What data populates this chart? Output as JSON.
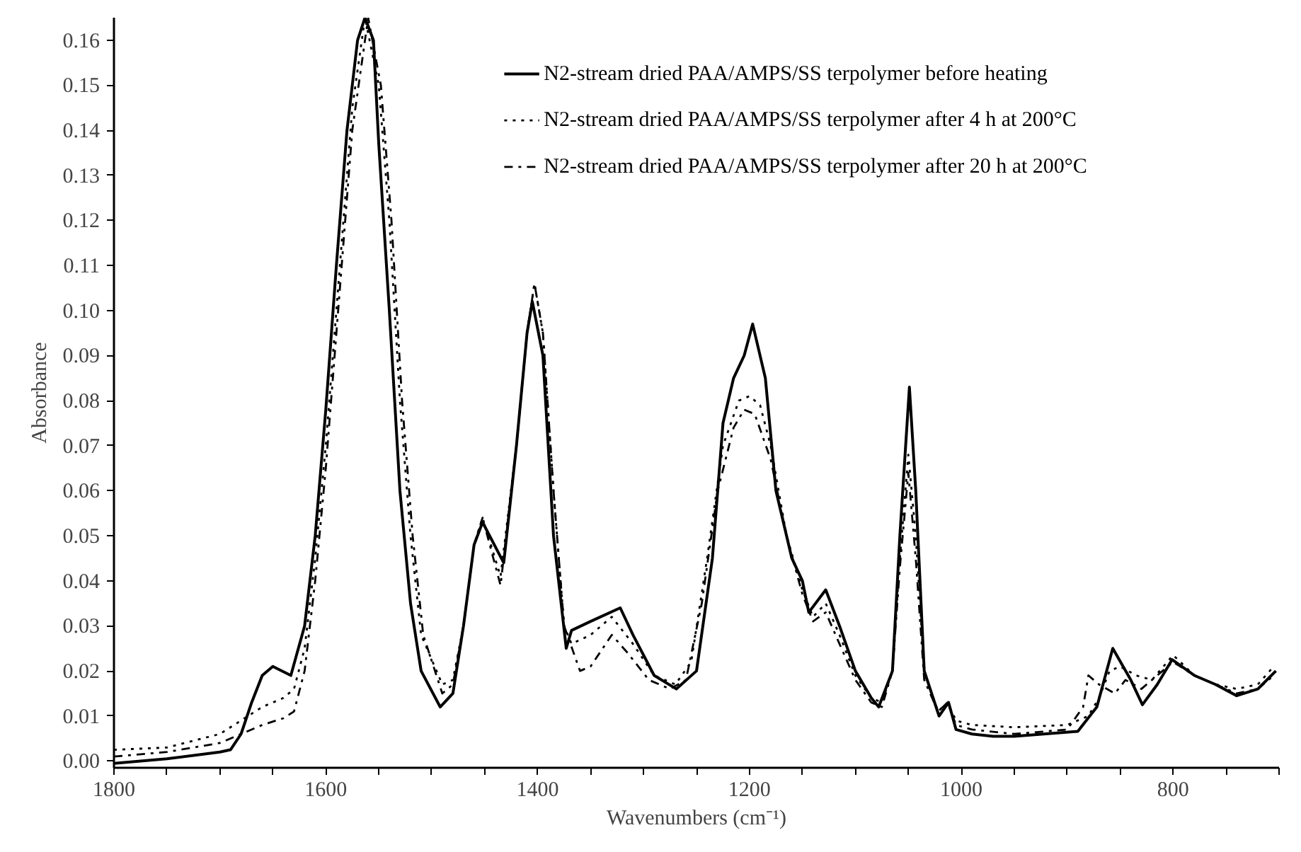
{
  "chart_data": {
    "type": "line",
    "xlabel": "Wavenumbers (cm⁻¹)",
    "ylabel": "Absorbance",
    "xlim": [
      1800,
      700
    ],
    "ylim": [
      -0.0015,
      0.165
    ],
    "xticks": [
      1800,
      {
        "value": 1750,
        "label": null
      },
      {
        "value": 1700,
        "label": null
      },
      {
        "value": 1650,
        "label": null
      },
      1600,
      {
        "value": 1550,
        "label": null
      },
      {
        "value": 1500,
        "label": null
      },
      {
        "value": 1450,
        "label": null
      },
      1400,
      {
        "value": 1350,
        "label": null
      },
      {
        "value": 1300,
        "label": null
      },
      {
        "value": 1250,
        "label": null
      },
      1200,
      {
        "value": 1150,
        "label": null
      },
      {
        "value": 1100,
        "label": null
      },
      {
        "value": 1050,
        "label": null
      },
      1000,
      {
        "value": 950,
        "label": null
      },
      {
        "value": 900,
        "label": null
      },
      {
        "value": 850,
        "label": null
      },
      800,
      {
        "value": 750,
        "label": null
      },
      {
        "value": 700,
        "label": null
      }
    ],
    "yticks": [
      {
        "value": 0,
        "label": "0.00"
      },
      {
        "value": 0.01,
        "label": "0.01"
      },
      {
        "value": 0.02,
        "label": "0.02"
      },
      {
        "value": 0.03,
        "label": "0.03"
      },
      {
        "value": 0.04,
        "label": "0.04"
      },
      {
        "value": 0.05,
        "label": "0.05"
      },
      {
        "value": 0.06,
        "label": "0.06"
      },
      {
        "value": 0.07,
        "label": "0.07"
      },
      {
        "value": 0.08,
        "label": "0.08"
      },
      {
        "value": 0.09,
        "label": "0.09"
      },
      {
        "value": 0.1,
        "label": "0.10"
      },
      {
        "value": 0.11,
        "label": "0.11"
      },
      {
        "value": 0.12,
        "label": "0.12"
      },
      {
        "value": 0.13,
        "label": "0.13"
      },
      {
        "value": 0.14,
        "label": "0.14"
      },
      {
        "value": 0.15,
        "label": "0.15"
      },
      {
        "value": 0.16,
        "label": "0.16"
      }
    ],
    "grid": false,
    "legend": "top right",
    "marker": "none",
    "series": [
      {
        "name": "N2-stream dried PAA/AMPS/SS terpolymer before heating",
        "color": "#000000",
        "line_style": "solid",
        "x": [
          1800,
          1750,
          1700,
          1690,
          1680,
          1670,
          1660,
          1650,
          1633,
          1620,
          1610,
          1600,
          1590,
          1580,
          1570,
          1563,
          1555,
          1550,
          1540,
          1530,
          1520,
          1510,
          1492,
          1480,
          1470,
          1460,
          1452,
          1432,
          1420,
          1410,
          1405,
          1395,
          1385,
          1373,
          1368,
          1350,
          1322,
          1310,
          1290,
          1269,
          1250,
          1235,
          1225,
          1215,
          1205,
          1197,
          1185,
          1175,
          1160,
          1150,
          1144,
          1128,
          1115,
          1100,
          1085,
          1078,
          1065,
          1058,
          1049,
          1043,
          1035,
          1021,
          1012,
          1005,
          990,
          970,
          950,
          890,
          872,
          857,
          840,
          829,
          815,
          801,
          780,
          760,
          740,
          720,
          703
        ],
        "values": [
          -0.0005,
          0.0005,
          0.002,
          0.0025,
          0.006,
          0.013,
          0.019,
          0.021,
          0.019,
          0.03,
          0.05,
          0.078,
          0.11,
          0.14,
          0.16,
          0.165,
          0.16,
          0.137,
          0.1,
          0.06,
          0.035,
          0.02,
          0.012,
          0.015,
          0.03,
          0.048,
          0.053,
          0.044,
          0.07,
          0.095,
          0.102,
          0.09,
          0.05,
          0.025,
          0.029,
          0.031,
          0.034,
          0.028,
          0.019,
          0.016,
          0.02,
          0.045,
          0.075,
          0.085,
          0.09,
          0.097,
          0.085,
          0.06,
          0.045,
          0.04,
          0.033,
          0.038,
          0.03,
          0.02,
          0.014,
          0.012,
          0.02,
          0.05,
          0.083,
          0.06,
          0.02,
          0.01,
          0.013,
          0.007,
          0.006,
          0.0055,
          0.0055,
          0.0066,
          0.012,
          0.025,
          0.018,
          0.0125,
          0.017,
          0.0225,
          0.019,
          0.017,
          0.0145,
          0.016,
          0.02
        ]
      },
      {
        "name": "N2-stream dried PAA/AMPS/SS terpolymer after 4 h at 200°C",
        "color": "#000000",
        "line_style": "dotted",
        "x": [
          1800,
          1750,
          1700,
          1680,
          1660,
          1640,
          1630,
          1620,
          1610,
          1600,
          1590,
          1575,
          1563,
          1550,
          1540,
          1530,
          1520,
          1510,
          1490,
          1480,
          1470,
          1460,
          1452,
          1435,
          1420,
          1410,
          1403,
          1395,
          1385,
          1375,
          1368,
          1350,
          1330,
          1310,
          1290,
          1270,
          1255,
          1240,
          1225,
          1210,
          1200,
          1190,
          1180,
          1165,
          1150,
          1140,
          1128,
          1115,
          1100,
          1085,
          1075,
          1065,
          1058,
          1050,
          1043,
          1035,
          1022,
          1013,
          1005,
          990,
          950,
          900,
          880,
          870,
          860,
          850,
          835,
          820,
          800,
          780,
          760,
          740,
          720,
          705
        ],
        "values": [
          0.0025,
          0.003,
          0.006,
          0.009,
          0.012,
          0.014,
          0.016,
          0.025,
          0.045,
          0.07,
          0.1,
          0.145,
          0.165,
          0.15,
          0.12,
          0.08,
          0.05,
          0.028,
          0.017,
          0.018,
          0.03,
          0.048,
          0.054,
          0.041,
          0.07,
          0.095,
          0.106,
          0.095,
          0.06,
          0.03,
          0.026,
          0.028,
          0.032,
          0.026,
          0.019,
          0.017,
          0.022,
          0.045,
          0.07,
          0.08,
          0.081,
          0.079,
          0.07,
          0.05,
          0.038,
          0.032,
          0.035,
          0.028,
          0.019,
          0.014,
          0.013,
          0.02,
          0.045,
          0.068,
          0.05,
          0.02,
          0.011,
          0.013,
          0.009,
          0.008,
          0.0075,
          0.008,
          0.01,
          0.014,
          0.02,
          0.021,
          0.019,
          0.018,
          0.0235,
          0.019,
          0.017,
          0.016,
          0.017,
          0.021
        ]
      },
      {
        "name": "N2-stream dried PAA/AMPS/SS terpolymer after 20 h at 200°C",
        "color": "#000000",
        "line_style": "dashed",
        "x": [
          1800,
          1750,
          1700,
          1680,
          1660,
          1640,
          1630,
          1620,
          1610,
          1600,
          1590,
          1575,
          1560,
          1548,
          1538,
          1528,
          1518,
          1508,
          1490,
          1480,
          1470,
          1460,
          1452,
          1435,
          1420,
          1410,
          1403,
          1395,
          1385,
          1375,
          1360,
          1350,
          1330,
          1315,
          1295,
          1275,
          1260,
          1245,
          1230,
          1215,
          1205,
          1195,
          1180,
          1165,
          1150,
          1140,
          1128,
          1115,
          1100,
          1085,
          1075,
          1065,
          1058,
          1050,
          1043,
          1035,
          1022,
          1013,
          1005,
          990,
          950,
          900,
          885,
          880,
          870,
          855,
          845,
          830,
          800,
          780,
          760,
          740,
          720,
          705
        ],
        "values": [
          0.001,
          0.002,
          0.004,
          0.006,
          0.008,
          0.0095,
          0.011,
          0.02,
          0.04,
          0.065,
          0.095,
          0.14,
          0.165,
          0.15,
          0.12,
          0.08,
          0.05,
          0.028,
          0.015,
          0.017,
          0.03,
          0.048,
          0.054,
          0.039,
          0.07,
          0.095,
          0.106,
          0.095,
          0.06,
          0.03,
          0.02,
          0.021,
          0.028,
          0.024,
          0.018,
          0.016,
          0.018,
          0.035,
          0.06,
          0.074,
          0.078,
          0.077,
          0.067,
          0.05,
          0.037,
          0.031,
          0.033,
          0.026,
          0.018,
          0.013,
          0.012,
          0.02,
          0.043,
          0.064,
          0.045,
          0.018,
          0.011,
          0.013,
          0.008,
          0.007,
          0.006,
          0.007,
          0.012,
          0.019,
          0.017,
          0.015,
          0.018,
          0.016,
          0.022,
          0.019,
          0.017,
          0.015,
          0.016,
          0.019
        ]
      }
    ]
  }
}
